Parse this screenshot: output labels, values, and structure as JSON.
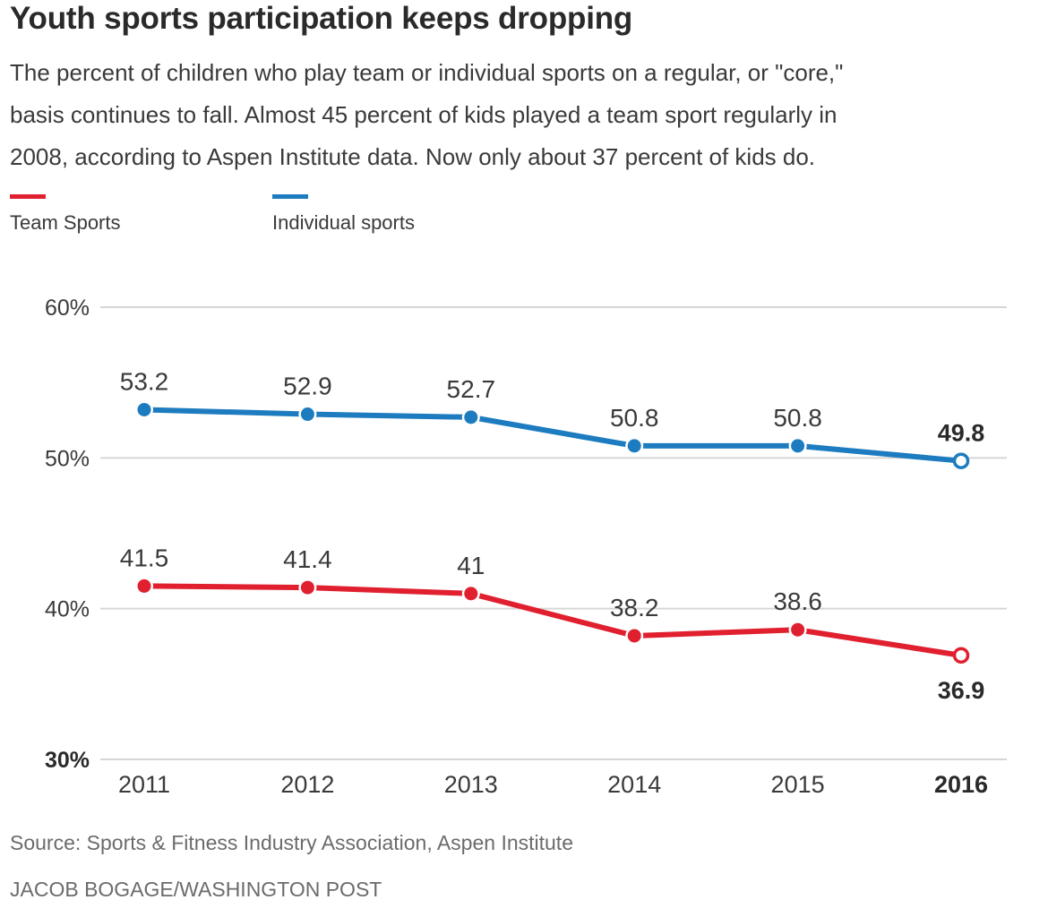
{
  "header": {
    "title": "Youth sports participation keeps dropping",
    "subtitle_lines": [
      "The percent of children who play team or individual sports on a regular, or \"core,\"",
      "basis continues to fall. Almost 45 percent of kids played a team sport regularly in",
      "2008, according to Aspen Institute data. Now only about 37 percent of kids do."
    ]
  },
  "legend": [
    {
      "label": "Team Sports",
      "color": "#e0202f"
    },
    {
      "label": "Individual sports",
      "color": "#1d7cbf"
    }
  ],
  "footer": {
    "source": "Source: Sports & Fitness Industry Association, Aspen Institute",
    "credit": "JACOB BOGAGE/WASHINGTON POST"
  },
  "chart_data": {
    "type": "line",
    "title": "Youth sports participation keeps dropping",
    "xlabel": "",
    "ylabel": "",
    "x": [
      2011,
      2012,
      2013,
      2014,
      2015,
      2016
    ],
    "x_tick_labels": [
      "2011",
      "2012",
      "2013",
      "2014",
      "2015",
      "2016"
    ],
    "highlight_x_label": "2016",
    "y_ticks": [
      30,
      40,
      50,
      60
    ],
    "y_tick_labels": [
      "30%",
      "40%",
      "50%",
      "60%"
    ],
    "ylim": [
      30,
      60
    ],
    "grid": true,
    "legend_position": "top-left",
    "series": [
      {
        "name": "Individual sports",
        "color": "#1d7cbf",
        "values": [
          53.2,
          52.9,
          52.7,
          50.8,
          50.8,
          49.8
        ],
        "labels": [
          "53.2",
          "52.9",
          "52.7",
          "50.8",
          "50.8",
          "49.8"
        ],
        "label_position": "above",
        "last_point_hollow": true
      },
      {
        "name": "Team Sports",
        "color": "#e0202f",
        "values": [
          41.5,
          41.4,
          41.0,
          38.2,
          38.6,
          36.9
        ],
        "labels": [
          "41.5",
          "41.4",
          "41",
          "38.2",
          "38.6",
          "36.9"
        ],
        "label_position": "above",
        "last_label_position": "below",
        "last_point_hollow": true
      }
    ]
  }
}
